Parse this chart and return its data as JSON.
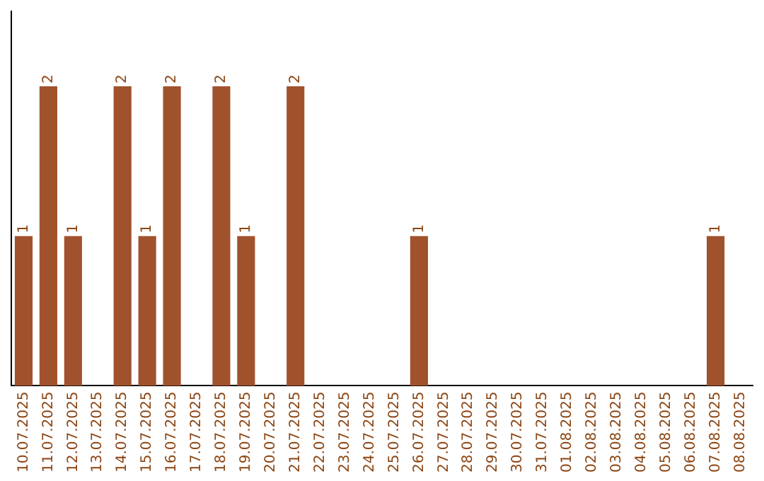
{
  "chart_data": {
    "type": "bar",
    "categories": [
      "10.07.2025",
      "11.07.2025",
      "12.07.2025",
      "13.07.2025",
      "14.07.2025",
      "15.07.2025",
      "16.07.2025",
      "17.07.2025",
      "18.07.2025",
      "19.07.2025",
      "20.07.2025",
      "21.07.2025",
      "22.07.2025",
      "23.07.2025",
      "24.07.2025",
      "25.07.2025",
      "26.07.2025",
      "27.07.2025",
      "28.07.2025",
      "29.07.2025",
      "30.07.2025",
      "31.07.2025",
      "01.08.2025",
      "02.08.2025",
      "03.08.2025",
      "04.08.2025",
      "05.08.2025",
      "06.08.2025",
      "07.08.2025",
      "08.08.2025"
    ],
    "values": [
      1,
      2,
      1,
      0,
      2,
      1,
      2,
      0,
      2,
      1,
      0,
      2,
      0,
      0,
      0,
      0,
      1,
      0,
      0,
      0,
      0,
      0,
      0,
      0,
      0,
      0,
      0,
      0,
      1,
      0
    ],
    "value_labels": [
      "1",
      "2",
      "1",
      null,
      "2",
      "1",
      "2",
      null,
      "2",
      "1",
      null,
      "2",
      null,
      null,
      null,
      null,
      "1",
      null,
      null,
      null,
      null,
      null,
      null,
      null,
      null,
      null,
      null,
      null,
      "1",
      null
    ],
    "color": "#a0522d",
    "grid": false,
    "legend": false,
    "tick_labels": "x"
  }
}
